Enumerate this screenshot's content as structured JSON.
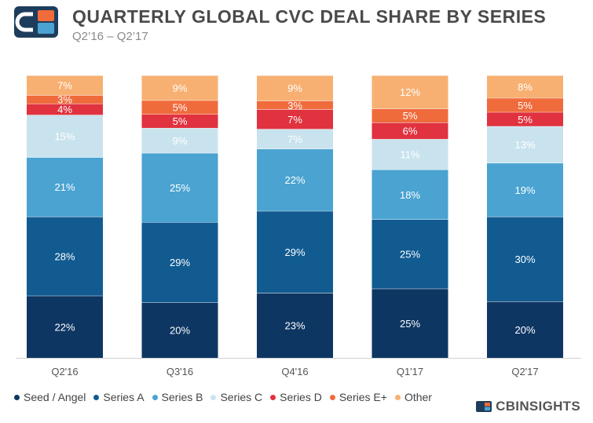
{
  "title": "QUARTERLY GLOBAL CVC DEAL SHARE BY SERIES",
  "subtitle": "Q2’16 – Q2’17",
  "brand": "CBINSIGHTS",
  "colors": {
    "Seed / Angel": "#0e3663",
    "Series A": "#115b91",
    "Series B": "#4aa3d1",
    "Series C": "#c9e3ee",
    "Series D": "#e0323f",
    "Series E+": "#f06b3c",
    "Other": "#f7b072"
  },
  "chart_data": {
    "type": "bar",
    "stacked": true,
    "categories": [
      "Q2'16",
      "Q3'16",
      "Q4'16",
      "Q1'17",
      "Q2'17"
    ],
    "series": [
      {
        "name": "Seed / Angel",
        "values": [
          22,
          20,
          23,
          25,
          20
        ]
      },
      {
        "name": "Series A",
        "values": [
          28,
          29,
          29,
          25,
          30
        ]
      },
      {
        "name": "Series B",
        "values": [
          21,
          25,
          22,
          18,
          19
        ]
      },
      {
        "name": "Series C",
        "values": [
          15,
          9,
          7,
          11,
          13
        ]
      },
      {
        "name": "Series D",
        "values": [
          4,
          5,
          7,
          6,
          5
        ]
      },
      {
        "name": "Series E+",
        "values": [
          3,
          5,
          3,
          5,
          5
        ]
      },
      {
        "name": "Other",
        "values": [
          7,
          9,
          9,
          12,
          8
        ]
      }
    ],
    "ylim": [
      0,
      100
    ],
    "legend_position": "bottom",
    "grid": false
  }
}
